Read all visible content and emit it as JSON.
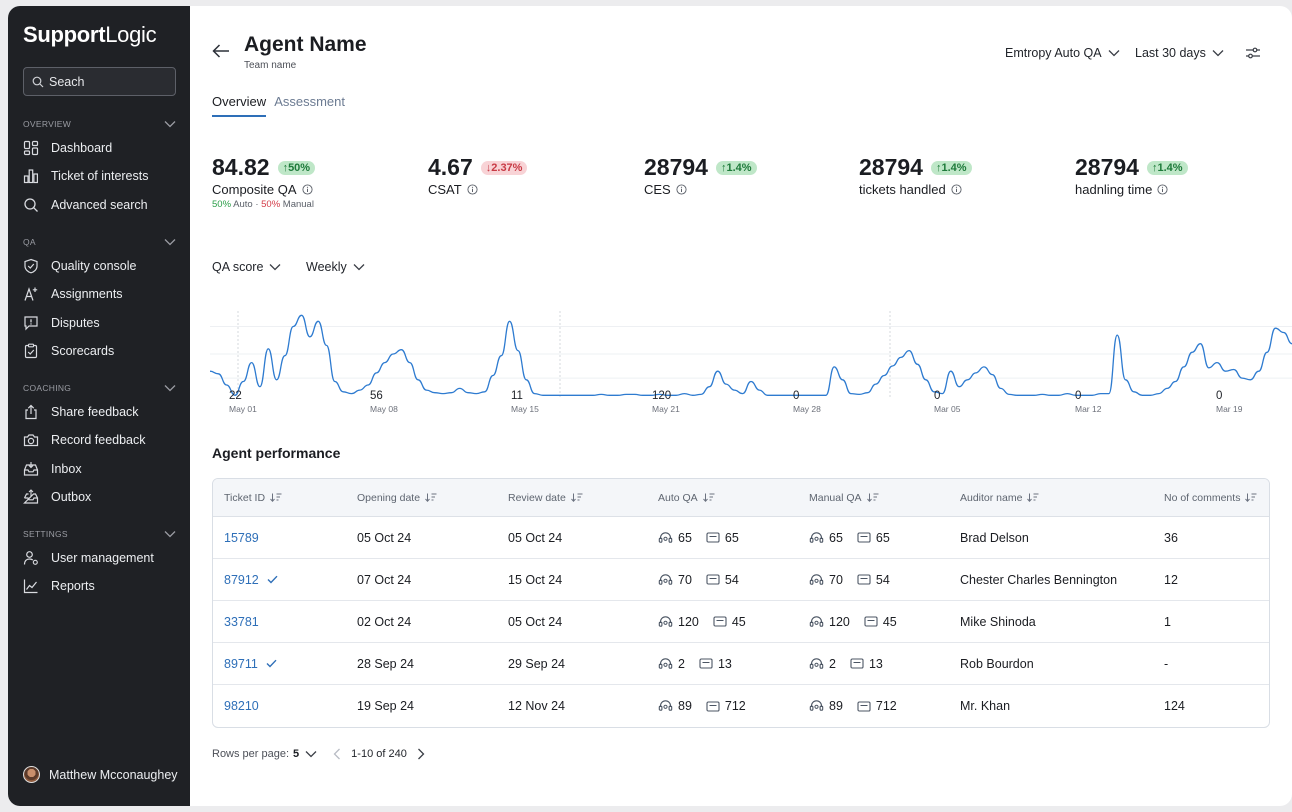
{
  "app": {
    "brand_bold": "Support",
    "brand_light": "Logic"
  },
  "sidebar": {
    "search_placeholder": "Seach",
    "sections": [
      {
        "label": "OVERVIEW",
        "items": [
          "Dashboard",
          "Ticket of interests",
          "Advanced search"
        ]
      },
      {
        "label": "QA",
        "items": [
          "Quality console",
          "Assignments",
          "Disputes",
          "Scorecards"
        ]
      },
      {
        "label": "COACHING",
        "items": [
          "Share feedback",
          "Record feedback",
          "Inbox",
          "Outbox"
        ]
      },
      {
        "label": "SETTINGS",
        "items": [
          "User management",
          "Reports"
        ]
      }
    ],
    "user_name": "Matthew Mcconaughey"
  },
  "header": {
    "title": "Agent Name",
    "subtitle": "Team name",
    "source_filter": "Emtropy Auto QA",
    "range_filter": "Last 30 days",
    "tabs": [
      "Overview",
      "Assessment"
    ]
  },
  "stats": [
    {
      "value": "84.82",
      "delta": "↑50%",
      "dir": "up",
      "label": "Composite QA",
      "sub": {
        "auto_pct": "50%",
        "auto_lbl": "Auto",
        "dot": "·",
        "manual_pct": "50%",
        "manual_lbl": "Manual"
      }
    },
    {
      "value": "4.67",
      "delta": "↓2.37%",
      "dir": "down",
      "label": "CSAT"
    },
    {
      "value": "28794",
      "delta": "↑1.4%",
      "dir": "up",
      "label": "CES"
    },
    {
      "value": "28794",
      "delta": "↑1.4%",
      "dir": "up",
      "label": "tickets handled"
    },
    {
      "value": "28794",
      "delta": "↑1.4%",
      "dir": "up",
      "label": "hadnling time"
    }
  ],
  "chart_filters": {
    "metric": "QA score",
    "period": "Weekly"
  },
  "chart_data": {
    "type": "line",
    "title": "QA score",
    "ylim": [
      0,
      100
    ],
    "grid": true,
    "x_ticks": [
      {
        "value": "22",
        "date": "May 01"
      },
      {
        "value": "56",
        "date": "May 08"
      },
      {
        "value": "11",
        "date": "May 15"
      },
      {
        "value": "120",
        "date": "May 21"
      },
      {
        "value": "0",
        "date": "May 28"
      },
      {
        "value": "0",
        "date": "Mar 05"
      },
      {
        "value": "0",
        "date": "Mar 12"
      },
      {
        "value": "0",
        "date": "Mar 19"
      }
    ],
    "values": [
      30,
      27,
      14,
      2,
      18,
      40,
      12,
      56,
      20,
      48,
      82,
      95,
      70,
      88,
      60,
      18,
      6,
      4,
      8,
      14,
      28,
      40,
      50,
      55,
      40,
      20,
      8,
      5,
      4,
      5,
      10,
      5,
      4,
      6,
      25,
      48,
      88,
      54,
      20,
      4,
      2,
      2,
      2,
      2,
      2,
      2,
      2,
      3,
      2,
      2,
      3,
      3,
      2,
      2,
      3,
      2,
      2,
      4,
      2,
      3,
      12,
      30,
      15,
      8,
      4,
      18,
      8,
      2,
      2,
      2,
      2,
      2,
      2,
      2,
      2,
      35,
      20,
      4,
      3,
      5,
      15,
      25,
      36,
      46,
      54,
      38,
      20,
      6,
      4,
      30,
      12,
      20,
      28,
      35,
      26,
      10,
      3,
      2,
      2,
      2,
      3,
      2,
      2,
      4,
      2,
      2,
      2,
      4,
      4,
      72,
      20,
      6,
      2,
      2,
      4,
      10,
      18,
      35,
      52,
      62,
      34,
      40,
      30,
      32,
      22,
      20,
      30,
      52,
      80,
      75,
      62
    ]
  },
  "performance": {
    "title": "Agent performance",
    "columns": [
      "Ticket ID",
      "Opening date",
      "Review date",
      "Auto QA",
      "Manual QA",
      "Auditor name",
      "No of comments"
    ],
    "rows": [
      {
        "id": "15789",
        "check": false,
        "open": "05 Oct 24",
        "review": "05 Oct 24",
        "auto_a": "65",
        "auto_b": "65",
        "man_a": "65",
        "man_b": "65",
        "auditor": "Brad Delson",
        "comments": "36"
      },
      {
        "id": "87912",
        "check": true,
        "open": "07 Oct 24",
        "review": "15 Oct 24",
        "auto_a": "70",
        "auto_b": "54",
        "man_a": "70",
        "man_b": "54",
        "auditor": "Chester Charles Bennington",
        "comments": "12"
      },
      {
        "id": "33781",
        "check": false,
        "open": "02 Oct 24",
        "review": "05 Oct 24",
        "auto_a": "120",
        "auto_b": "45",
        "man_a": "120",
        "man_b": "45",
        "auditor": "Mike Shinoda",
        "comments": "1"
      },
      {
        "id": "89711",
        "check": true,
        "open": "28 Sep 24",
        "review": "29 Sep 24",
        "auto_a": "2",
        "auto_b": "13",
        "man_a": "2",
        "man_b": "13",
        "auditor": "Rob Bourdon",
        "comments": "-"
      },
      {
        "id": "98210",
        "check": false,
        "open": "19 Sep 24",
        "review": "12 Nov 24",
        "auto_a": "89",
        "auto_b": "712",
        "man_a": "89",
        "man_b": "712",
        "auditor": "Mr. Khan",
        "comments": "124"
      }
    ]
  },
  "pagination": {
    "rows_label": "Rows per page:",
    "rows_value": "5",
    "range": "1-10 of 240"
  }
}
